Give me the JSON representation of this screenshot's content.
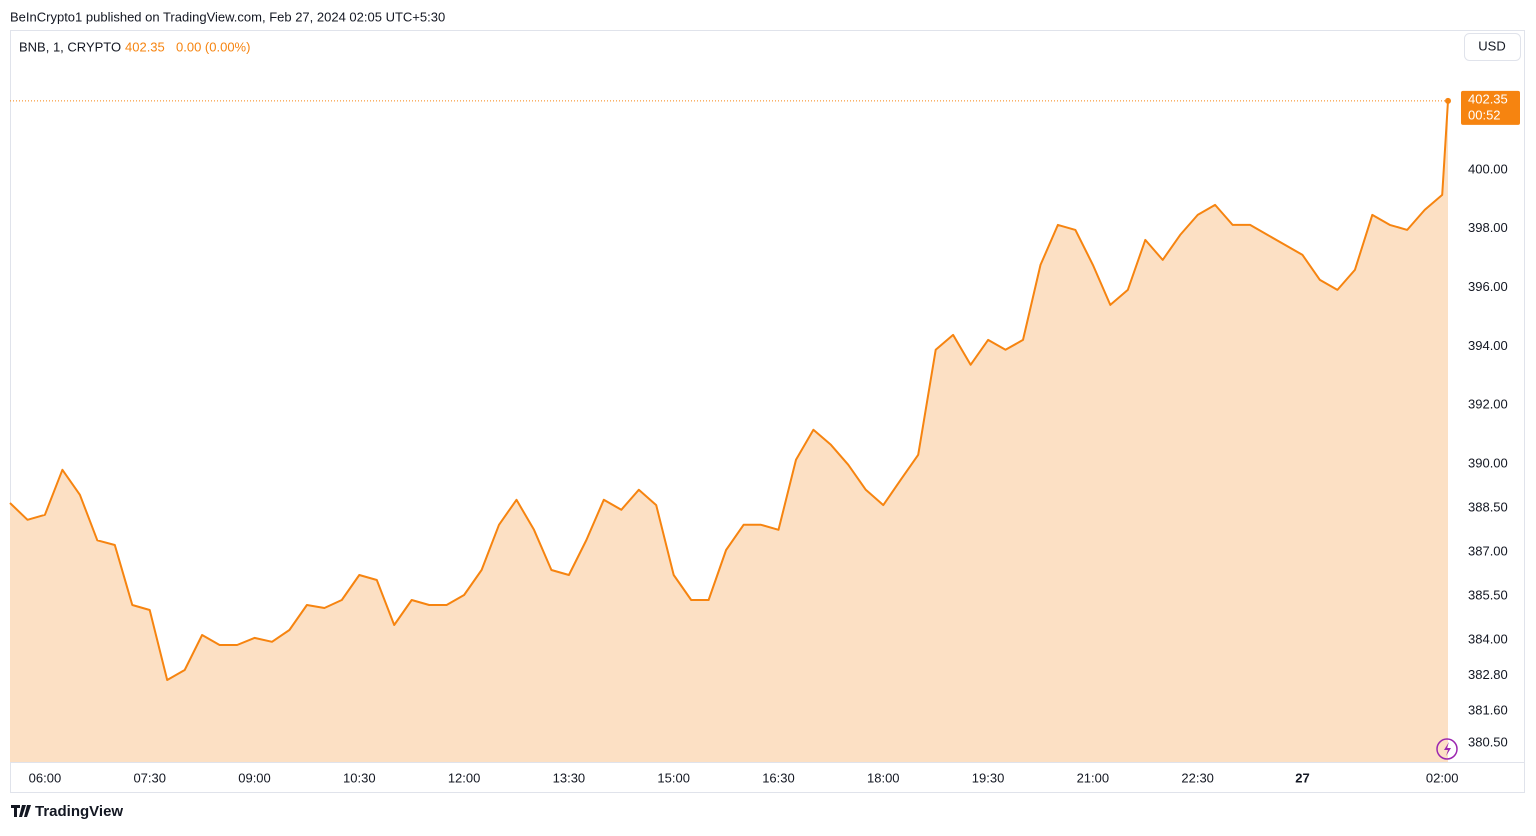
{
  "header": {
    "published": "BeInCrypto1 published on TradingView.com, Feb 27, 2024 02:05 UTC+5:30",
    "brand": "TradingView"
  },
  "chart_data": {
    "type": "area",
    "symbol": "BNB, 1, CRYPTO",
    "change": "0.00 (0.00%)",
    "currency": "USD",
    "countdown": "00:52",
    "x": [
      330,
      345,
      360,
      375,
      390,
      405,
      420,
      435,
      450,
      465,
      480,
      495,
      510,
      525,
      540,
      555,
      570,
      585,
      600,
      615,
      630,
      645,
      660,
      675,
      690,
      705,
      720,
      735,
      750,
      765,
      780,
      795,
      810,
      825,
      840,
      855,
      870,
      885,
      900,
      915,
      930,
      945,
      960,
      975,
      990,
      1005,
      1020,
      1035,
      1050,
      1065,
      1080,
      1095,
      1110,
      1125,
      1140,
      1155,
      1170,
      1185,
      1200,
      1215,
      1230,
      1245,
      1260,
      1275,
      1290,
      1305,
      1320,
      1335,
      1350,
      1365,
      1380,
      1395,
      1410,
      1425,
      1440,
      1455,
      1470,
      1485,
      1500,
      1515,
      1530,
      1545,
      1560,
      1565
    ],
    "series": [
      {
        "name": "BNB",
        "color": "#f68410",
        "values": [
          388.67,
          388.1,
          388.27,
          389.8,
          388.95,
          387.4,
          387.24,
          385.2,
          385.03,
          382.65,
          382.99,
          384.18,
          383.84,
          383.84,
          384.08,
          383.95,
          384.35,
          385.2,
          385.1,
          385.37,
          386.22,
          386.05,
          384.52,
          385.37,
          385.2,
          385.2,
          385.54,
          386.39,
          387.93,
          388.78,
          387.76,
          386.39,
          386.22,
          387.41,
          388.78,
          388.44,
          389.12,
          388.6,
          386.22,
          385.37,
          385.37,
          387.07,
          387.93,
          387.93,
          387.76,
          390.14,
          391.16,
          390.65,
          389.97,
          389.12,
          388.6,
          389.46,
          390.31,
          393.88,
          394.39,
          393.37,
          394.22,
          393.88,
          394.22,
          396.77,
          398.13,
          397.96,
          396.77,
          395.41,
          395.92,
          397.62,
          396.94,
          397.79,
          398.47,
          398.81,
          398.13,
          398.13,
          397.79,
          397.45,
          397.11,
          396.26,
          395.92,
          396.6,
          398.47,
          398.13,
          397.96,
          398.64,
          399.15,
          402.35
        ]
      }
    ],
    "xlim": [
      330,
      1565
    ],
    "ylim": [
      379.86,
      404.76
    ],
    "xticks": [
      {
        "value": 360,
        "label": "06:00"
      },
      {
        "value": 450,
        "label": "07:30"
      },
      {
        "value": 540,
        "label": "09:00"
      },
      {
        "value": 630,
        "label": "10:30"
      },
      {
        "value": 720,
        "label": "12:00"
      },
      {
        "value": 810,
        "label": "13:30"
      },
      {
        "value": 900,
        "label": "15:00"
      },
      {
        "value": 990,
        "label": "16:30"
      },
      {
        "value": 1080,
        "label": "18:00"
      },
      {
        "value": 1170,
        "label": "19:30"
      },
      {
        "value": 1260,
        "label": "21:00"
      },
      {
        "value": 1350,
        "label": "22:30"
      },
      {
        "value": 1440,
        "label": "27"
      },
      {
        "value": 1560,
        "label": "02:00"
      }
    ],
    "yticks": [
      {
        "value": 400,
        "label": "400.00"
      },
      {
        "value": 398,
        "label": "398.00"
      },
      {
        "value": 396,
        "label": "396.00"
      },
      {
        "value": 394,
        "label": "394.00"
      },
      {
        "value": 392,
        "label": "392.00"
      },
      {
        "value": 390,
        "label": "390.00"
      },
      {
        "value": 388.5,
        "label": "388.50"
      },
      {
        "value": 387,
        "label": "387.00"
      },
      {
        "value": 385.5,
        "label": "385.50"
      },
      {
        "value": 384,
        "label": "384.00"
      },
      {
        "value": 382.8,
        "label": "382.80"
      },
      {
        "value": 381.6,
        "label": "381.60"
      },
      {
        "value": 380.5,
        "label": "380.50"
      }
    ]
  }
}
